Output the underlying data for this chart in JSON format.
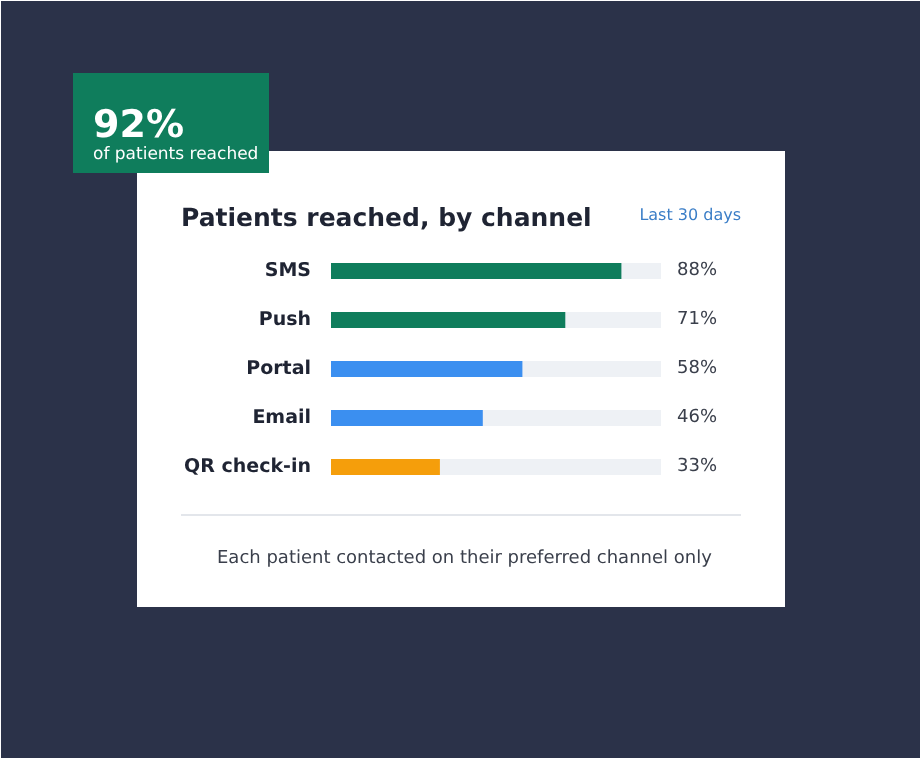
{
  "chart_data": {
    "type": "bar",
    "orientation": "horizontal",
    "title": "Patients reached, by channel",
    "subtitle": "Last 30 days",
    "categories": [
      "SMS",
      "Push",
      "Portal",
      "Email",
      "QR check-in"
    ],
    "values": [
      88,
      71,
      58,
      46,
      33
    ],
    "colors": [
      "#0f7d5c",
      "#0f7d5c",
      "#3b8ff0",
      "#3b8ff0",
      "#f59e0b"
    ],
    "xlim": [
      0,
      100
    ],
    "data_labels": true,
    "value_labels": [
      "88%",
      "71%",
      "58%",
      "46%",
      "33%"
    ],
    "annotations": [
      "92%",
      "of patients reached",
      "Each patient contacted on their preferred channel only"
    ]
  }
}
